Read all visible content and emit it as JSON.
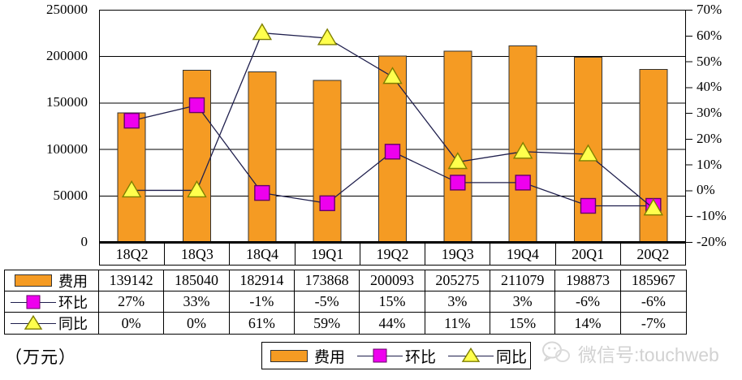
{
  "chart_data": {
    "type": "combo-bar-line",
    "title": "",
    "categories": [
      "18Q2",
      "18Q3",
      "18Q4",
      "19Q1",
      "19Q2",
      "19Q3",
      "19Q4",
      "20Q1",
      "20Q2"
    ],
    "series": [
      {
        "name": "费用",
        "type": "bar",
        "axis": "left",
        "values": [
          139142,
          185040,
          182914,
          173868,
          200093,
          205275,
          211079,
          198873,
          185967
        ]
      },
      {
        "name": "环比",
        "type": "line",
        "axis": "right",
        "marker": "square",
        "unit": "%",
        "values": [
          27,
          33,
          -1,
          -5,
          15,
          3,
          3,
          -6,
          -6
        ]
      },
      {
        "name": "同比",
        "type": "line",
        "axis": "right",
        "marker": "triangle",
        "unit": "%",
        "values": [
          0,
          0,
          61,
          59,
          44,
          11,
          15,
          14,
          -7
        ]
      }
    ],
    "left_axis": {
      "min": 0,
      "max": 250000,
      "step": 50000,
      "tick_labels": [
        "250000",
        "200000",
        "150000",
        "100000",
        "50000",
        "0"
      ]
    },
    "right_axis": {
      "min": -20,
      "max": 70,
      "step": 10,
      "tick_labels": [
        "70%",
        "60%",
        "50%",
        "40%",
        "30%",
        "20%",
        "10%",
        "0%",
        "-10%",
        "-20%"
      ]
    },
    "grid": true,
    "legend_position": "bottom"
  },
  "colors": {
    "bar_fill": "#F59B23",
    "bar_border": "#333333",
    "line": "#1F1F4D",
    "square_fill": "#EE00EE",
    "square_border": "#660066",
    "triangle_fill": "#FFFF4D",
    "triangle_border": "#7F7F00",
    "axis": "#000000",
    "watermark": "#D2D2D2"
  },
  "table": {
    "rows": [
      {
        "label": "费用",
        "key": "bar",
        "values": [
          "139142",
          "185040",
          "182914",
          "173868",
          "200093",
          "205275",
          "211079",
          "198873",
          "185967"
        ]
      },
      {
        "label": "环比",
        "key": "square",
        "values": [
          "27%",
          "33%",
          "-1%",
          "-5%",
          "15%",
          "3%",
          "3%",
          "-6%",
          "-6%"
        ]
      },
      {
        "label": "同比",
        "key": "triangle",
        "values": [
          "0%",
          "0%",
          "61%",
          "59%",
          "44%",
          "11%",
          "15%",
          "14%",
          "-7%"
        ]
      }
    ]
  },
  "legend": {
    "items": [
      {
        "label": "费用",
        "key": "bar"
      },
      {
        "label": "环比",
        "key": "square"
      },
      {
        "label": "同比",
        "key": "triangle"
      }
    ]
  },
  "footer": {
    "unit_label": "（万元）",
    "watermark_text": "微信号:touchweb",
    "watermark_icon": "wechat-icon"
  }
}
